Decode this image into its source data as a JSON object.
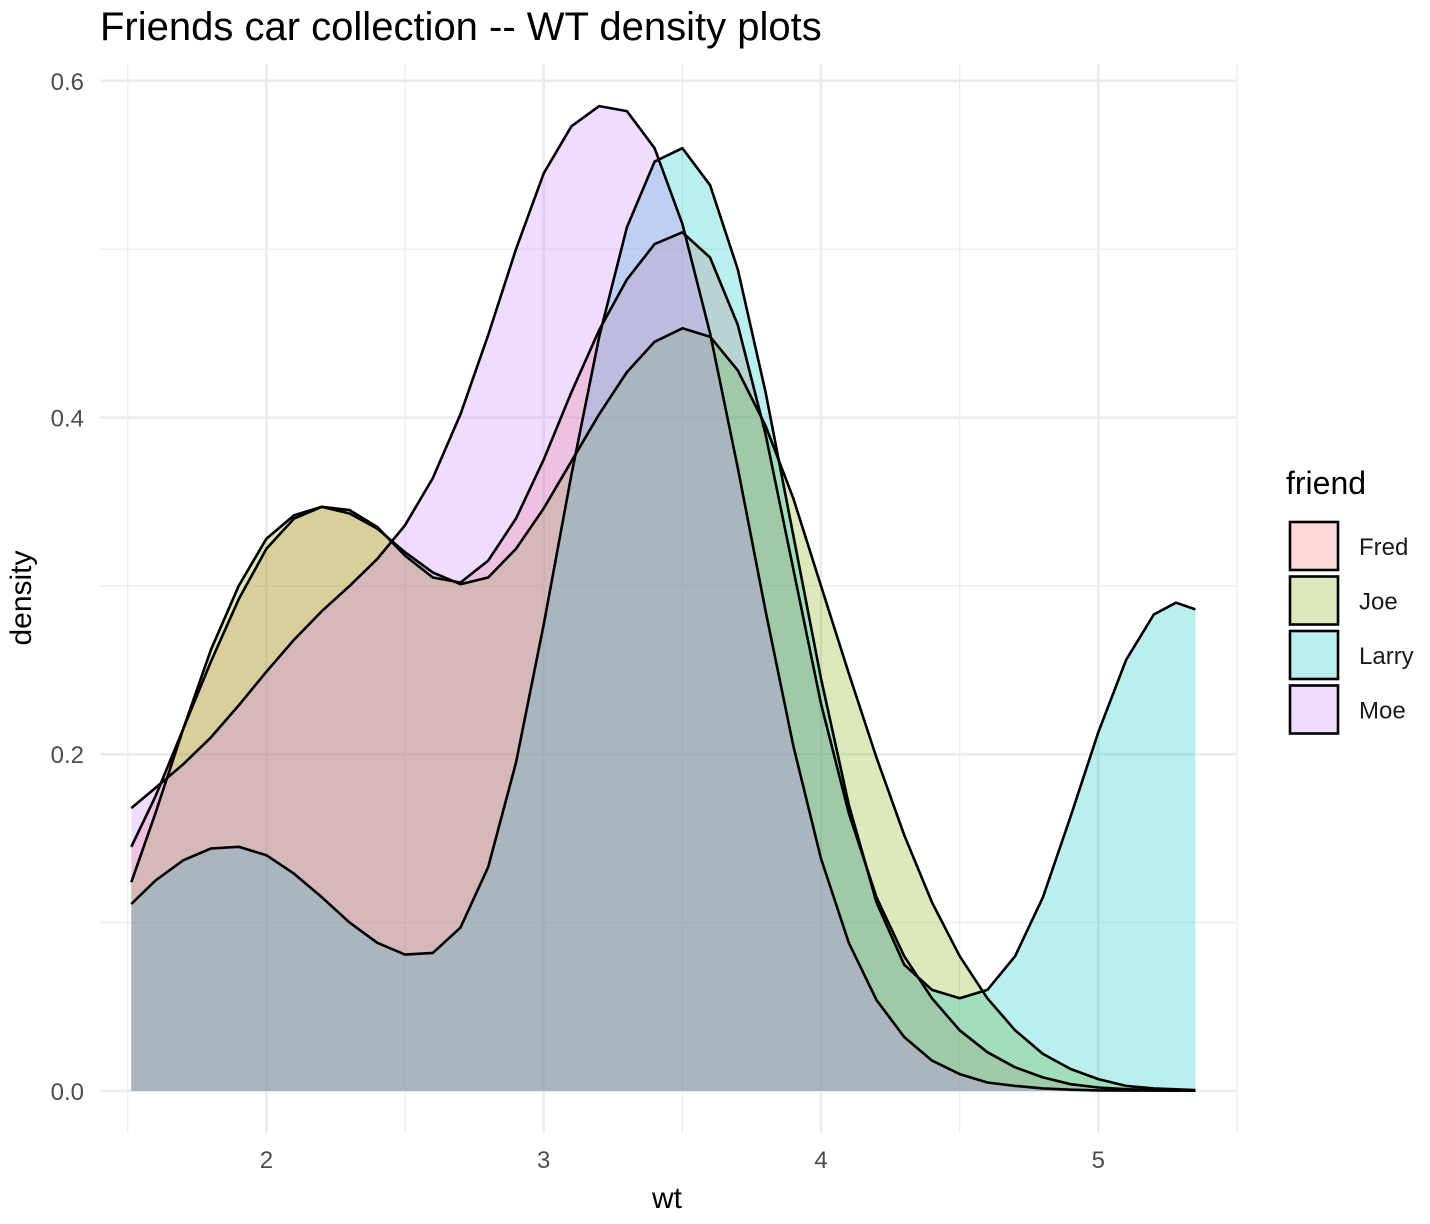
{
  "chart_data": {
    "type": "area",
    "subtype": "density",
    "title": "Friends car collection -- WT density plots",
    "xlabel": "wt",
    "ylabel": "density",
    "xlim": [
      1.4,
      5.5
    ],
    "ylim": [
      -0.025,
      0.61
    ],
    "x_ticks": [
      "2",
      "3",
      "4",
      "5"
    ],
    "y_ticks": [
      "0.0",
      "0.2",
      "0.4",
      "0.6"
    ],
    "grid": true,
    "legend": {
      "title": "friend",
      "position": "right"
    },
    "fill_opacity": 0.27,
    "series": [
      {
        "name": "Fred",
        "color": "#F8766D",
        "points": [
          [
            1.513,
            0.145
          ],
          [
            1.6,
            0.175
          ],
          [
            1.7,
            0.215
          ],
          [
            1.8,
            0.255
          ],
          [
            1.9,
            0.292
          ],
          [
            2.0,
            0.322
          ],
          [
            2.1,
            0.34
          ],
          [
            2.2,
            0.347
          ],
          [
            2.3,
            0.345
          ],
          [
            2.4,
            0.335
          ],
          [
            2.5,
            0.318
          ],
          [
            2.6,
            0.305
          ],
          [
            2.7,
            0.302
          ],
          [
            2.8,
            0.315
          ],
          [
            2.9,
            0.34
          ],
          [
            3.0,
            0.375
          ],
          [
            3.1,
            0.415
          ],
          [
            3.2,
            0.452
          ],
          [
            3.3,
            0.482
          ],
          [
            3.4,
            0.503
          ],
          [
            3.5,
            0.51
          ],
          [
            3.6,
            0.495
          ],
          [
            3.7,
            0.455
          ],
          [
            3.8,
            0.39
          ],
          [
            3.9,
            0.31
          ],
          [
            4.0,
            0.23
          ],
          [
            4.1,
            0.165
          ],
          [
            4.2,
            0.115
          ],
          [
            4.3,
            0.08
          ],
          [
            4.4,
            0.055
          ],
          [
            4.5,
            0.036
          ],
          [
            4.6,
            0.023
          ],
          [
            4.7,
            0.014
          ],
          [
            4.8,
            0.008
          ],
          [
            4.9,
            0.004
          ],
          [
            5.0,
            0.002
          ],
          [
            5.1,
            0.001
          ],
          [
            5.2,
            0.0005
          ],
          [
            5.35,
            0.0002
          ]
        ]
      },
      {
        "name": "Joe",
        "color": "#7CAE00",
        "points": [
          [
            1.513,
            0.124
          ],
          [
            1.6,
            0.165
          ],
          [
            1.7,
            0.215
          ],
          [
            1.8,
            0.262
          ],
          [
            1.9,
            0.3
          ],
          [
            2.0,
            0.328
          ],
          [
            2.1,
            0.342
          ],
          [
            2.2,
            0.347
          ],
          [
            2.3,
            0.343
          ],
          [
            2.4,
            0.334
          ],
          [
            2.5,
            0.32
          ],
          [
            2.6,
            0.308
          ],
          [
            2.7,
            0.301
          ],
          [
            2.8,
            0.305
          ],
          [
            2.9,
            0.322
          ],
          [
            3.0,
            0.346
          ],
          [
            3.1,
            0.374
          ],
          [
            3.2,
            0.402
          ],
          [
            3.3,
            0.427
          ],
          [
            3.4,
            0.445
          ],
          [
            3.5,
            0.453
          ],
          [
            3.6,
            0.448
          ],
          [
            3.7,
            0.428
          ],
          [
            3.8,
            0.395
          ],
          [
            3.9,
            0.352
          ],
          [
            4.0,
            0.3
          ],
          [
            4.1,
            0.248
          ],
          [
            4.2,
            0.198
          ],
          [
            4.3,
            0.152
          ],
          [
            4.4,
            0.112
          ],
          [
            4.5,
            0.08
          ],
          [
            4.6,
            0.055
          ],
          [
            4.7,
            0.036
          ],
          [
            4.8,
            0.022
          ],
          [
            4.9,
            0.013
          ],
          [
            5.0,
            0.007
          ],
          [
            5.1,
            0.003
          ],
          [
            5.2,
            0.0015
          ],
          [
            5.35,
            0.0005
          ]
        ]
      },
      {
        "name": "Larry",
        "color": "#00BFC4",
        "points": [
          [
            1.513,
            0.111
          ],
          [
            1.6,
            0.125
          ],
          [
            1.7,
            0.137
          ],
          [
            1.8,
            0.144
          ],
          [
            1.9,
            0.145
          ],
          [
            2.0,
            0.14
          ],
          [
            2.1,
            0.129
          ],
          [
            2.2,
            0.115
          ],
          [
            2.3,
            0.1
          ],
          [
            2.4,
            0.088
          ],
          [
            2.5,
            0.081
          ],
          [
            2.6,
            0.082
          ],
          [
            2.7,
            0.097
          ],
          [
            2.8,
            0.133
          ],
          [
            2.9,
            0.195
          ],
          [
            3.0,
            0.277
          ],
          [
            3.1,
            0.366
          ],
          [
            3.2,
            0.448
          ],
          [
            3.3,
            0.513
          ],
          [
            3.4,
            0.552
          ],
          [
            3.5,
            0.56
          ],
          [
            3.6,
            0.538
          ],
          [
            3.7,
            0.488
          ],
          [
            3.8,
            0.415
          ],
          [
            3.9,
            0.33
          ],
          [
            4.0,
            0.245
          ],
          [
            4.1,
            0.17
          ],
          [
            4.2,
            0.112
          ],
          [
            4.3,
            0.075
          ],
          [
            4.4,
            0.06
          ],
          [
            4.5,
            0.055
          ],
          [
            4.6,
            0.06
          ],
          [
            4.7,
            0.08
          ],
          [
            4.8,
            0.115
          ],
          [
            4.9,
            0.163
          ],
          [
            5.0,
            0.213
          ],
          [
            5.1,
            0.256
          ],
          [
            5.2,
            0.283
          ],
          [
            5.28,
            0.29
          ],
          [
            5.35,
            0.286
          ]
        ]
      },
      {
        "name": "Moe",
        "color": "#C77CFF",
        "points": [
          [
            1.513,
            0.168
          ],
          [
            1.6,
            0.18
          ],
          [
            1.7,
            0.194
          ],
          [
            1.8,
            0.21
          ],
          [
            1.9,
            0.229
          ],
          [
            2.0,
            0.249
          ],
          [
            2.1,
            0.268
          ],
          [
            2.2,
            0.285
          ],
          [
            2.3,
            0.3
          ],
          [
            2.4,
            0.316
          ],
          [
            2.5,
            0.336
          ],
          [
            2.6,
            0.364
          ],
          [
            2.7,
            0.402
          ],
          [
            2.8,
            0.449
          ],
          [
            2.9,
            0.5
          ],
          [
            3.0,
            0.545
          ],
          [
            3.1,
            0.573
          ],
          [
            3.2,
            0.585
          ],
          [
            3.3,
            0.582
          ],
          [
            3.4,
            0.56
          ],
          [
            3.5,
            0.515
          ],
          [
            3.6,
            0.45
          ],
          [
            3.7,
            0.37
          ],
          [
            3.8,
            0.285
          ],
          [
            3.9,
            0.205
          ],
          [
            4.0,
            0.138
          ],
          [
            4.1,
            0.088
          ],
          [
            4.2,
            0.054
          ],
          [
            4.3,
            0.032
          ],
          [
            4.4,
            0.018
          ],
          [
            4.5,
            0.01
          ],
          [
            4.6,
            0.005
          ],
          [
            4.7,
            0.003
          ],
          [
            4.8,
            0.0015
          ],
          [
            4.9,
            0.0007
          ],
          [
            5.0,
            0.0003
          ],
          [
            5.35,
            0.0001
          ]
        ]
      }
    ]
  }
}
